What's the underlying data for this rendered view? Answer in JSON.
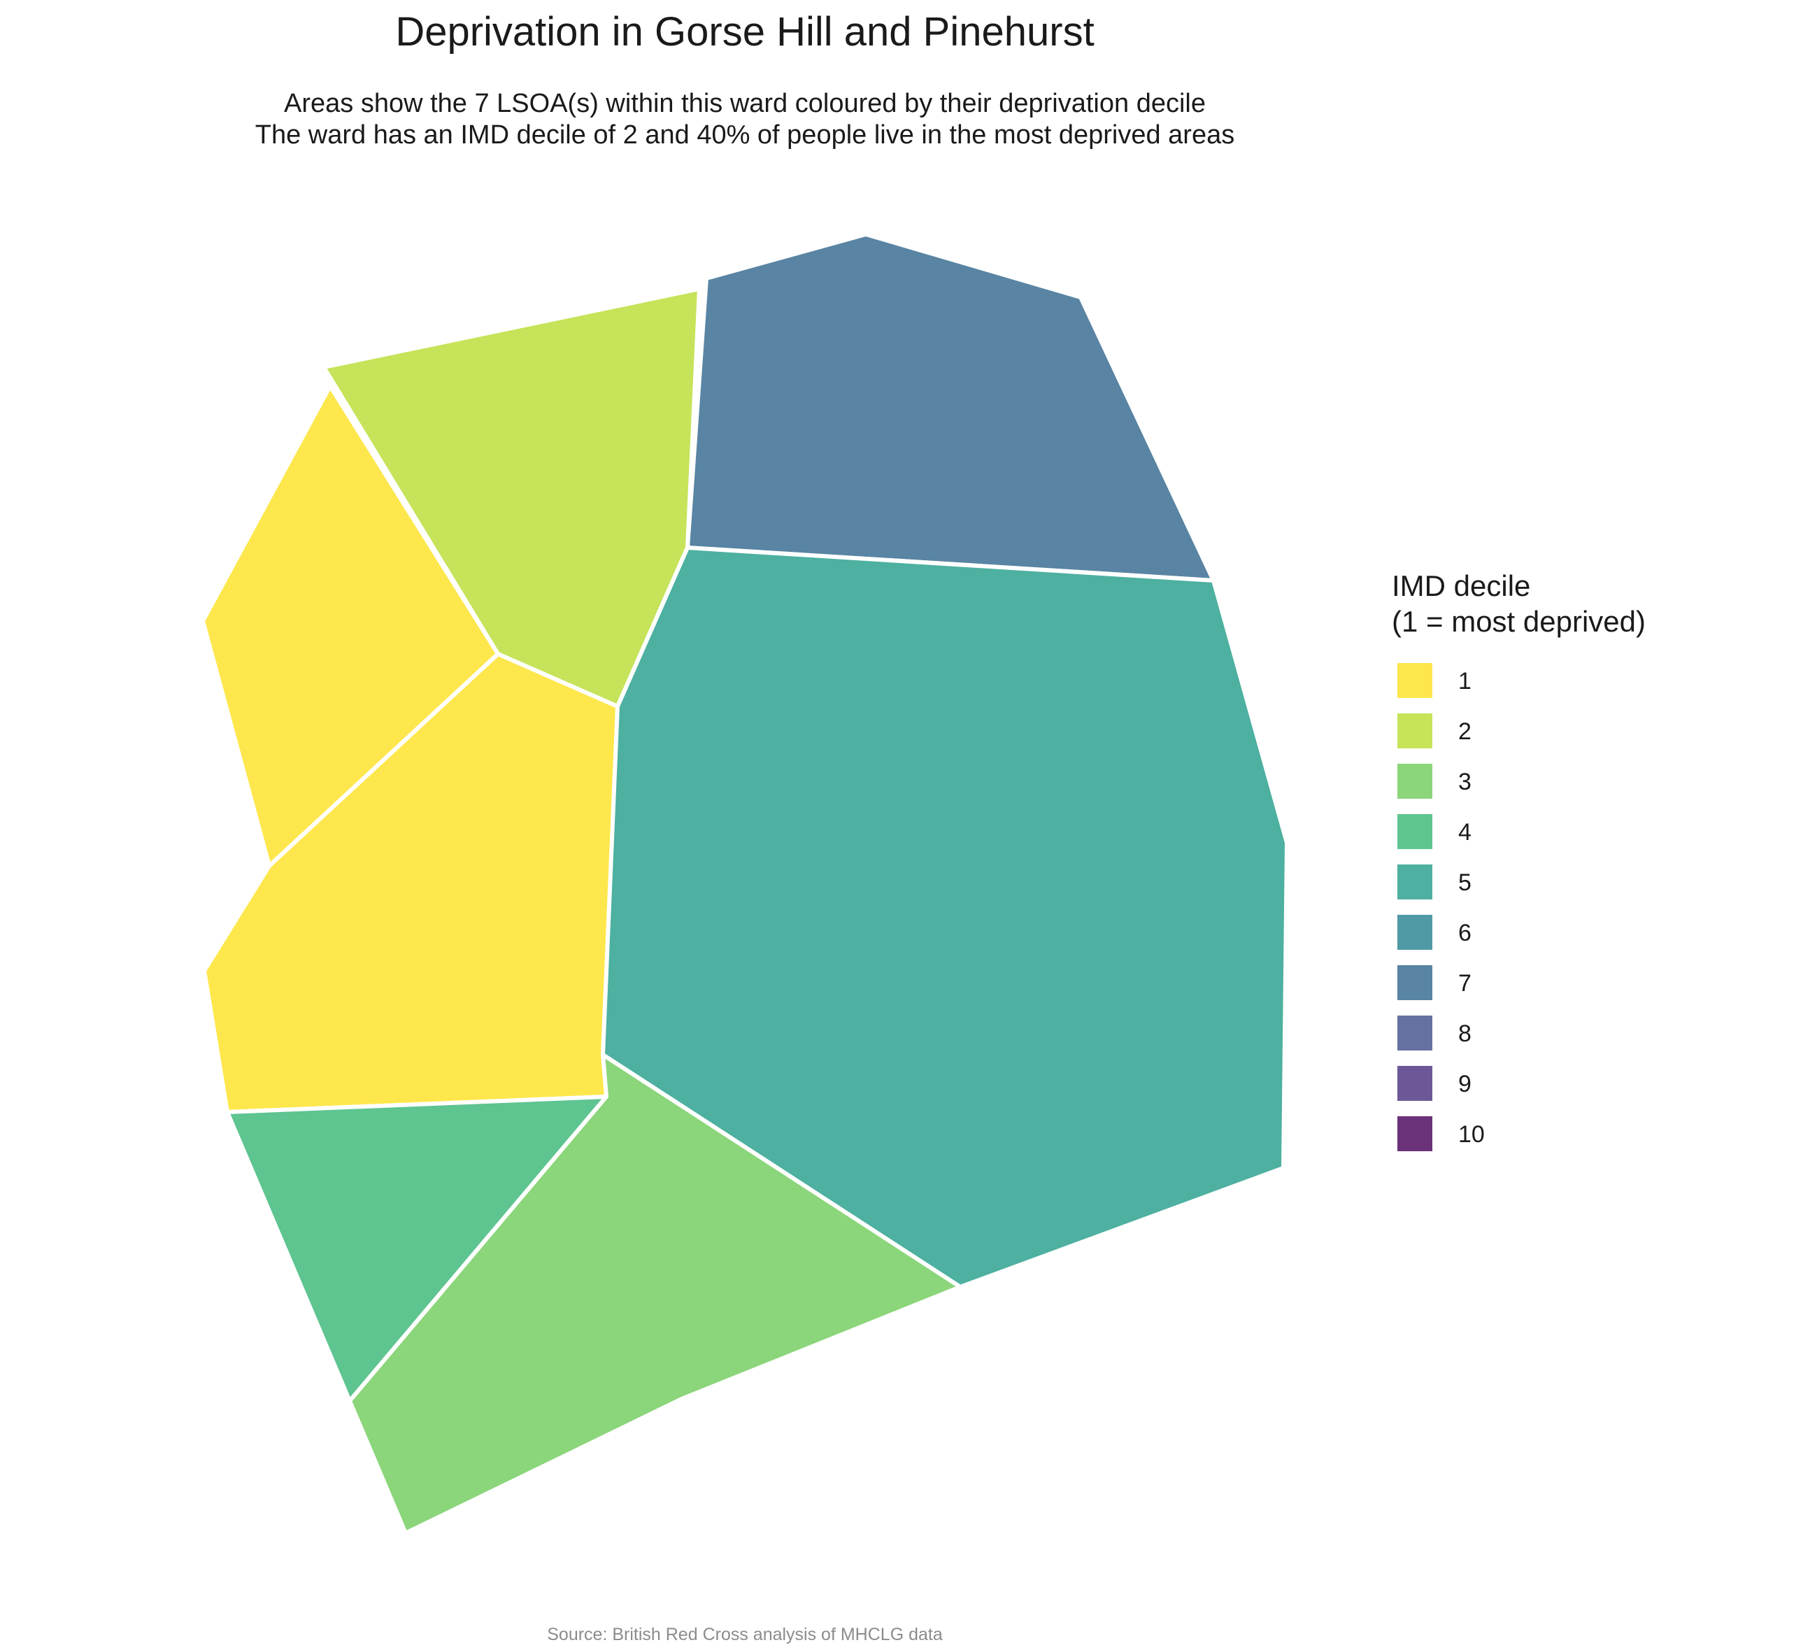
{
  "title": "Deprivation in Gorse Hill and Pinehurst",
  "subtitle_line1": "Areas show the 7 LSOA(s) within this ward coloured by their deprivation decile",
  "subtitle_line2": "The ward has an IMD decile of 2 and 40% of people live in the most deprived areas",
  "caption": "Source: British Red Cross analysis of MHCLG data",
  "legend": {
    "title_line1": "IMD decile",
    "title_line2": "(1 = most deprived)",
    "items": [
      {
        "label": "1",
        "color": "#FDE74C"
      },
      {
        "label": "2",
        "color": "#C6E35A"
      },
      {
        "label": "3",
        "color": "#8BD57A"
      },
      {
        "label": "4",
        "color": "#5EC490"
      },
      {
        "label": "5",
        "color": "#4DB0A0"
      },
      {
        "label": "6",
        "color": "#4F9AA5"
      },
      {
        "label": "7",
        "color": "#5984A3"
      },
      {
        "label": "8",
        "color": "#6571A0"
      },
      {
        "label": "9",
        "color": "#6D5897"
      },
      {
        "label": "10",
        "color": "#6A3278"
      }
    ]
  },
  "map": {
    "areas": [
      {
        "decile": 7,
        "color": "#5984A3"
      },
      {
        "decile": 2,
        "color": "#C6E35A"
      },
      {
        "decile": 1,
        "color": "#FDE74C"
      },
      {
        "decile": 1,
        "color": "#FDE74C"
      },
      {
        "decile": 5,
        "color": "#4DB0A0"
      },
      {
        "decile": 4,
        "color": "#5EC490"
      },
      {
        "decile": 3,
        "color": "#8BD57A"
      }
    ]
  }
}
